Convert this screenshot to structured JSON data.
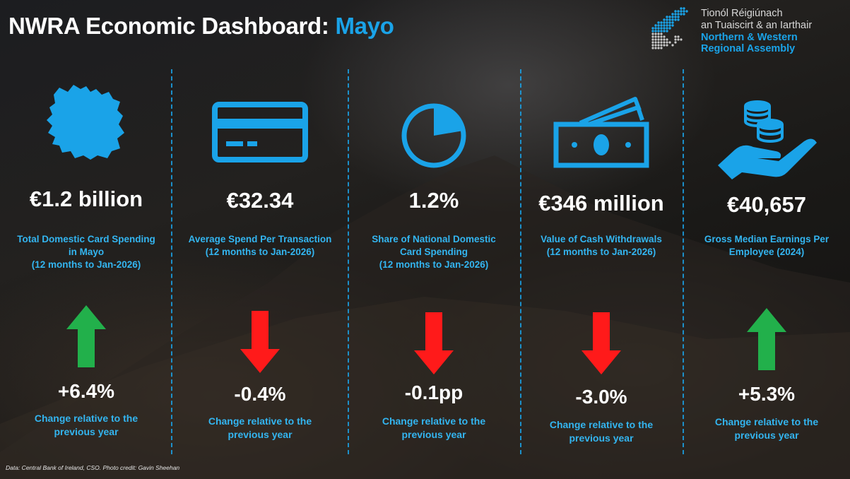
{
  "title": {
    "prefix": "NWRA Economic Dashboard: ",
    "county": "Mayo"
  },
  "logo": {
    "irish_line1": "Tionól Réigiúnach",
    "irish_line2": "an Tuaiscirt & an Iarthair",
    "english_line1": "Northern & Western",
    "english_line2": "Regional Assembly"
  },
  "colors": {
    "accent": "#1aa3e8",
    "up": "#22b04b",
    "down": "#ff1a1a"
  },
  "metrics": [
    {
      "icon": "mayo-map-icon",
      "value": "€1.2 billion",
      "desc": [
        "Total Domestic Card Spending",
        "in Mayo",
        "(12 months to Jan-2026)"
      ],
      "direction": "up",
      "change": "+6.4%",
      "change_label": [
        "Change relative to the",
        "previous year"
      ]
    },
    {
      "icon": "credit-card-icon",
      "value": "€32.34",
      "desc": [
        "Average Spend Per Transaction",
        "(12 months to Jan-2026)"
      ],
      "direction": "down",
      "change": "-0.4%",
      "change_label": [
        "Change relative to the",
        "previous year"
      ]
    },
    {
      "icon": "pie-chart-icon",
      "value": "1.2%",
      "desc": [
        "Share of National Domestic",
        "Card Spending",
        "(12 months to Jan-2026)"
      ],
      "direction": "down",
      "change": "-0.1pp",
      "change_label": [
        "Change relative to the",
        "previous year"
      ]
    },
    {
      "icon": "cash-banknotes-icon",
      "value": "€346 million",
      "desc": [
        "Value of Cash Withdrawals",
        "(12 months to Jan-2026)"
      ],
      "direction": "down",
      "change": "-3.0%",
      "change_label": [
        "Change relative to the",
        "previous year"
      ]
    },
    {
      "icon": "hand-coins-icon",
      "value": "€40,657",
      "desc": [
        "Gross Median Earnings Per",
        "Employee (2024)"
      ],
      "direction": "up",
      "change": "+5.3%",
      "change_label": [
        "Change relative to the",
        "previous year"
      ]
    }
  ],
  "footer": "Data: Central Bank of Ireland, CSO. Photo credit: Gavin Sheehan"
}
